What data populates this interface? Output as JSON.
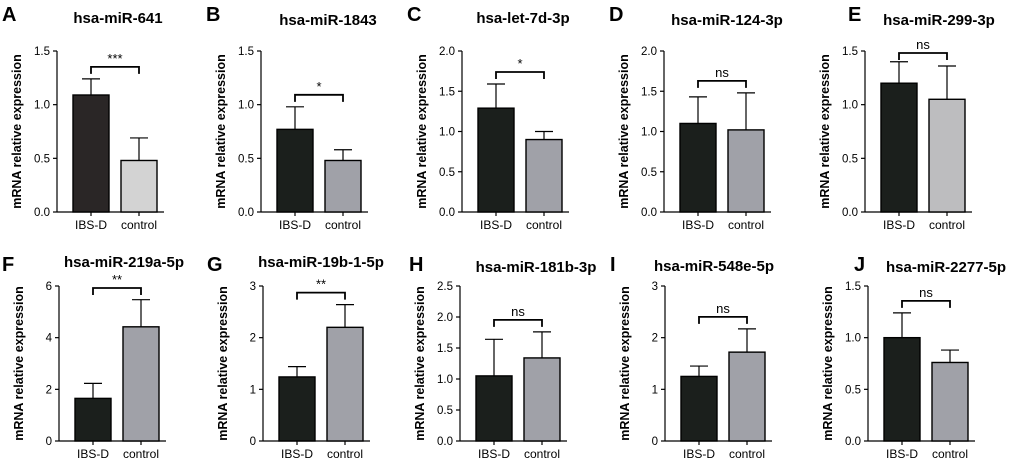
{
  "figure": {
    "bar_edge_color": "#000000",
    "colors": {
      "ibs_dark": "#1b1f1c",
      "ibs_brown": "#2a2626",
      "control_light": "#d3d3d3",
      "control_mid": "#a0a1a8",
      "control_gray": "#bdbdbf"
    }
  },
  "chart_data": [
    {
      "letter": "A",
      "type": "bar",
      "title": "hsa-miR-641",
      "ylabel": "mRNA relative expression",
      "categories": [
        "IBS-D",
        "control"
      ],
      "values": [
        1.09,
        0.48
      ],
      "errors": [
        0.15,
        0.21
      ],
      "ylim": [
        0,
        1.5
      ],
      "yticks": [
        "0.0",
        "0.5",
        "1.0",
        "1.5"
      ],
      "significance": "***",
      "colors": [
        "ibs_brown",
        "control_light"
      ]
    },
    {
      "letter": "B",
      "type": "bar",
      "title": "hsa-miR-1843",
      "ylabel": "mRNA relative expression",
      "categories": [
        "IBS-D",
        "control"
      ],
      "values": [
        0.77,
        0.48
      ],
      "errors": [
        0.21,
        0.1
      ],
      "ylim": [
        0,
        1.5
      ],
      "yticks": [
        "0.0",
        "0.5",
        "1.0",
        "1.5"
      ],
      "significance": "*",
      "colors": [
        "ibs_dark",
        "control_mid"
      ]
    },
    {
      "letter": "C",
      "type": "bar",
      "title": "hsa-let-7d-3p",
      "ylabel": "mRNA relative expression",
      "categories": [
        "IBS-D",
        "control"
      ],
      "values": [
        1.29,
        0.9
      ],
      "errors": [
        0.3,
        0.1
      ],
      "ylim": [
        0,
        2.0
      ],
      "yticks": [
        "0.0",
        "0.5",
        "1.0",
        "1.5",
        "2.0"
      ],
      "significance": "*",
      "colors": [
        "ibs_dark",
        "control_mid"
      ]
    },
    {
      "letter": "D",
      "type": "bar",
      "title": "hsa-miR-124-3p",
      "ylabel": "mRNA relative expression",
      "categories": [
        "IBS-D",
        "control"
      ],
      "values": [
        1.1,
        1.02
      ],
      "errors": [
        0.33,
        0.46
      ],
      "ylim": [
        0,
        2.0
      ],
      "yticks": [
        "0.0",
        "0.5",
        "1.0",
        "1.5",
        "2.0"
      ],
      "significance": "ns",
      "colors": [
        "ibs_dark",
        "control_mid"
      ]
    },
    {
      "letter": "E",
      "type": "bar",
      "title": "hsa-miR-299-3p",
      "ylabel": "mRNA relative expression",
      "categories": [
        "IBS-D",
        "control"
      ],
      "values": [
        1.2,
        1.05
      ],
      "errors": [
        0.2,
        0.31
      ],
      "ylim": [
        0,
        1.5
      ],
      "yticks": [
        "0.0",
        "0.5",
        "1.0",
        "1.5"
      ],
      "significance": "ns",
      "colors": [
        "ibs_dark",
        "control_gray"
      ]
    },
    {
      "letter": "F",
      "type": "bar",
      "title": "hsa-miR-219a-5p",
      "ylabel": "mRNA relative expression",
      "categories": [
        "IBS-D",
        "control"
      ],
      "values": [
        1.65,
        4.42
      ],
      "errors": [
        0.58,
        1.05
      ],
      "ylim": [
        0,
        6
      ],
      "yticks": [
        "0",
        "2",
        "4",
        "6"
      ],
      "significance": "**",
      "colors": [
        "ibs_dark",
        "control_mid"
      ]
    },
    {
      "letter": "G",
      "type": "bar",
      "title": "hsa-miR-19b-1-5p",
      "ylabel": "mRNA relative expression",
      "categories": [
        "IBS-D",
        "control"
      ],
      "values": [
        1.24,
        2.2
      ],
      "errors": [
        0.2,
        0.44
      ],
      "ylim": [
        0,
        3
      ],
      "yticks": [
        "0",
        "1",
        "2",
        "3"
      ],
      "significance": "**",
      "colors": [
        "ibs_dark",
        "control_mid"
      ]
    },
    {
      "letter": "H",
      "type": "bar",
      "title": "hsa-miR-181b-3p",
      "ylabel": "mRNA relative expression",
      "categories": [
        "IBS-D",
        "control"
      ],
      "values": [
        1.05,
        1.34
      ],
      "errors": [
        0.59,
        0.42
      ],
      "ylim": [
        0,
        2.5
      ],
      "yticks": [
        "0.0",
        "0.5",
        "1.0",
        "1.5",
        "2.0",
        "2.5"
      ],
      "significance": "ns",
      "colors": [
        "ibs_dark",
        "control_mid"
      ]
    },
    {
      "letter": "I",
      "type": "bar",
      "title": "hsa-miR-548e-5p",
      "ylabel": "mRNA relative expression",
      "categories": [
        "IBS-D",
        "control"
      ],
      "values": [
        1.25,
        1.72
      ],
      "errors": [
        0.2,
        0.45
      ],
      "ylim": [
        0,
        3
      ],
      "yticks": [
        "0",
        "1",
        "2",
        "3"
      ],
      "significance": "ns",
      "colors": [
        "ibs_dark",
        "control_mid"
      ]
    },
    {
      "letter": "J",
      "type": "bar",
      "title": "hsa-miR-2277-5p",
      "ylabel": "mRNA relative expression",
      "categories": [
        "IBS-D",
        "control"
      ],
      "values": [
        1.0,
        0.76
      ],
      "errors": [
        0.24,
        0.12
      ],
      "ylim": [
        0,
        1.5
      ],
      "yticks": [
        "0.0",
        "0.5",
        "1.0",
        "1.5"
      ],
      "significance": "ns",
      "colors": [
        "ibs_dark",
        "control_mid"
      ]
    }
  ]
}
